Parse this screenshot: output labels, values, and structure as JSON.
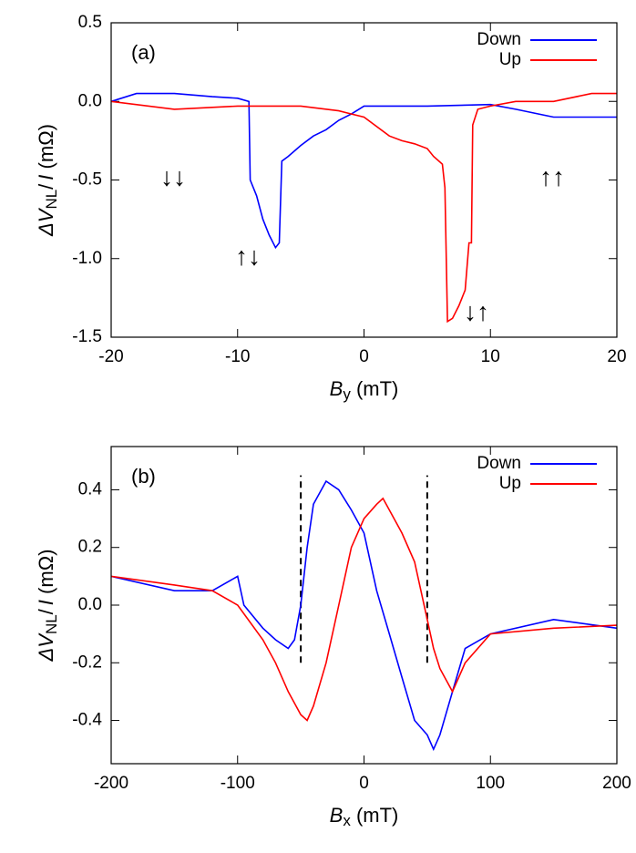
{
  "chart_data": [
    {
      "type": "line",
      "panel_label": "(a)",
      "xlabel": [
        "B",
        "y",
        " (mT)"
      ],
      "ylabel": [
        "ΔV",
        "NL",
        "/",
        "I",
        " (mΩ)"
      ],
      "xlim": [
        -20,
        20
      ],
      "xticks": [
        -20,
        -10,
        0,
        10,
        20
      ],
      "ylim": [
        -1.5,
        0.5
      ],
      "yticks": [
        {
          "value": -1.5,
          "label": "-1.5"
        },
        {
          "value": -1.0,
          "label": "-1.0"
        },
        {
          "value": -0.5,
          "label": "-0.5"
        },
        {
          "value": 0,
          "label": "0.0"
        },
        0.5
      ],
      "legend": "upper right",
      "annotations": [
        "↓↓",
        "↑↓",
        "↓↑",
        "↑↑"
      ],
      "series": [
        {
          "name": "Down",
          "color": "#0000ff",
          "x": [
            20,
            15,
            12,
            10,
            5,
            0,
            -1,
            -2,
            -3,
            -4,
            -5,
            -6,
            -6.5,
            -6.7,
            -7,
            -7.5,
            -8,
            -8.5,
            -9,
            -9.1,
            -10,
            -12,
            -15,
            -18,
            -20
          ],
          "values": [
            -0.1,
            -0.1,
            -0.05,
            -0.02,
            -0.03,
            -0.03,
            -0.08,
            -0.12,
            -0.18,
            -0.22,
            -0.28,
            -0.35,
            -0.38,
            -0.9,
            -0.93,
            -0.85,
            -0.75,
            -0.6,
            -0.5,
            0.0,
            0.02,
            0.03,
            0.05,
            0.05,
            0.0
          ]
        },
        {
          "name": "Up",
          "color": "#ff0000",
          "x": [
            -20,
            -15,
            -10,
            -5,
            -2,
            0,
            2,
            3,
            4,
            5,
            5.5,
            6.2,
            6.4,
            6.6,
            7,
            7.5,
            8,
            8.3,
            8.5,
            8.6,
            9,
            10,
            12,
            15,
            18,
            20
          ],
          "values": [
            0.0,
            -0.05,
            -0.03,
            -0.03,
            -0.06,
            -0.1,
            -0.22,
            -0.25,
            -0.27,
            -0.3,
            -0.35,
            -0.4,
            -0.55,
            -1.4,
            -1.38,
            -1.3,
            -1.2,
            -0.9,
            -0.9,
            -0.15,
            -0.05,
            -0.03,
            0.0,
            0.0,
            0.05,
            0.05
          ]
        }
      ]
    },
    {
      "type": "line",
      "panel_label": "(b)",
      "xlabel": [
        "B",
        "x",
        " (mT)"
      ],
      "ylabel": [
        "ΔV",
        "NL",
        "/",
        "I",
        " (mΩ)"
      ],
      "xlim": [
        -200,
        200
      ],
      "xticks": [
        -200,
        -100,
        0,
        100,
        200
      ],
      "ylim": [
        -0.55,
        0.55
      ],
      "yticks": [
        -0.4,
        -0.2,
        {
          "value": 0,
          "label": "0.0"
        },
        0.2,
        0.4
      ],
      "legend": "upper right",
      "vlines": [
        {
          "x": -50,
          "ymin": -0.2,
          "ymax": 0.45
        },
        {
          "x": 50,
          "ymin": -0.2,
          "ymax": 0.45
        }
      ],
      "series": [
        {
          "name": "Down",
          "color": "#0000ff",
          "x": [
            -200,
            -150,
            -120,
            -100,
            -95,
            -80,
            -70,
            -60,
            -55,
            -50,
            -45,
            -40,
            -30,
            -20,
            -10,
            0,
            10,
            20,
            30,
            40,
            50,
            55,
            60,
            70,
            80,
            100,
            150,
            200
          ],
          "values": [
            0.1,
            0.05,
            0.05,
            0.1,
            0.0,
            -0.08,
            -0.12,
            -0.15,
            -0.12,
            0.0,
            0.2,
            0.35,
            0.43,
            0.4,
            0.33,
            0.25,
            0.05,
            -0.1,
            -0.25,
            -0.4,
            -0.45,
            -0.5,
            -0.45,
            -0.3,
            -0.15,
            -0.1,
            -0.05,
            -0.08
          ]
        },
        {
          "name": "Up",
          "color": "#ff0000",
          "x": [
            -200,
            -150,
            -120,
            -100,
            -80,
            -70,
            -60,
            -50,
            -45,
            -40,
            -30,
            -20,
            -10,
            0,
            10,
            15,
            20,
            30,
            40,
            50,
            55,
            60,
            70,
            80,
            100,
            150,
            200
          ],
          "values": [
            0.1,
            0.07,
            0.05,
            0.0,
            -0.12,
            -0.2,
            -0.3,
            -0.38,
            -0.4,
            -0.35,
            -0.2,
            0.0,
            0.2,
            0.3,
            0.35,
            0.37,
            0.33,
            0.25,
            0.15,
            -0.05,
            -0.15,
            -0.22,
            -0.3,
            -0.2,
            -0.1,
            -0.08,
            -0.07
          ]
        }
      ]
    }
  ]
}
